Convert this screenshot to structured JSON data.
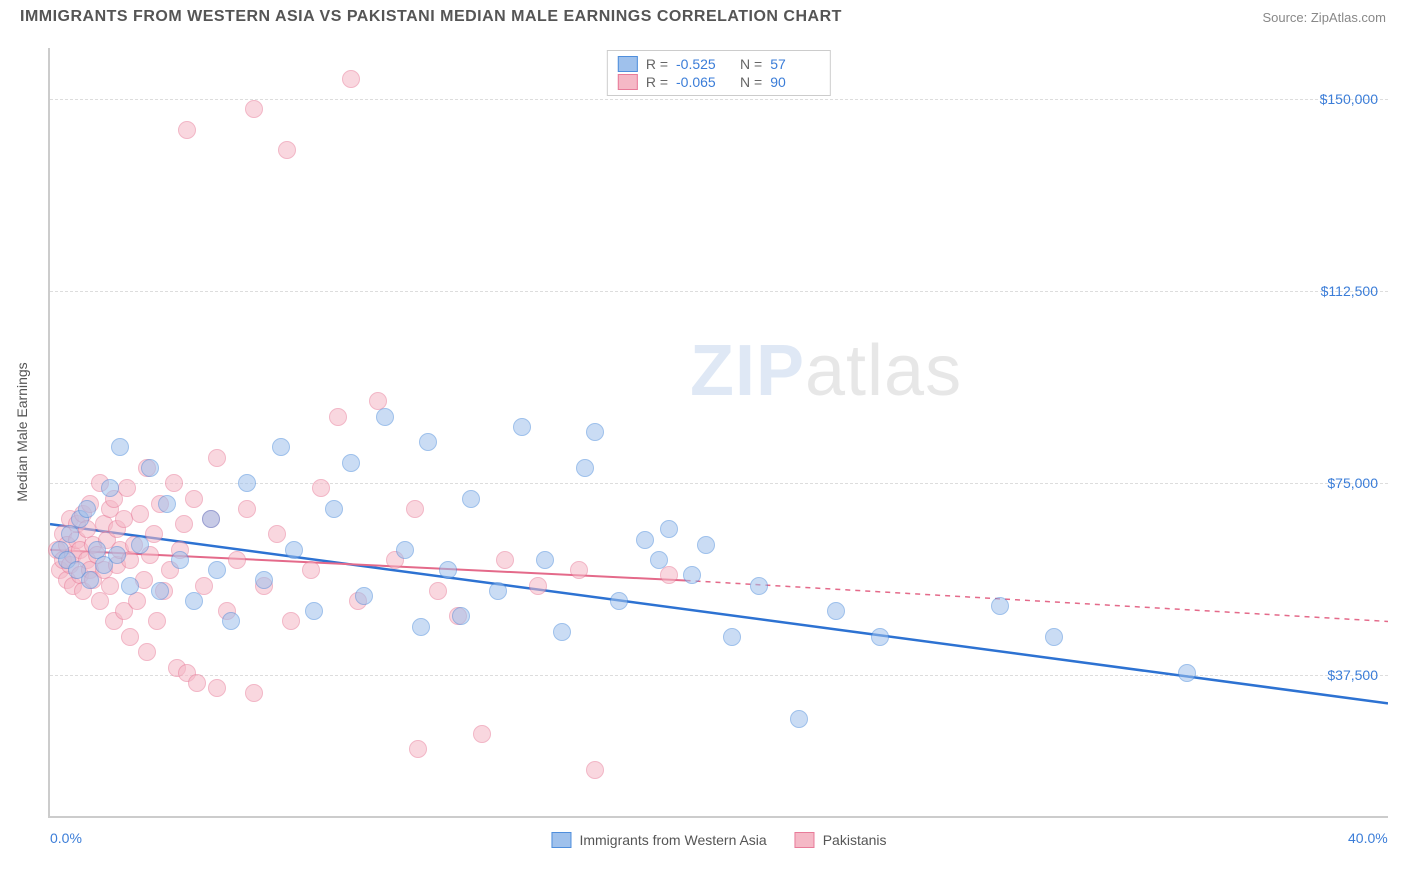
{
  "header": {
    "title": "IMMIGRANTS FROM WESTERN ASIA VS PAKISTANI MEDIAN MALE EARNINGS CORRELATION CHART",
    "source_prefix": "Source: ",
    "source_name": "ZipAtlas.com"
  },
  "watermark": {
    "part1": "ZIP",
    "part2": "atlas"
  },
  "chart": {
    "type": "scatter",
    "background_color": "#ffffff",
    "grid_color": "#dddddd",
    "axis_color": "#cccccc",
    "y_axis_label": "Median Male Earnings",
    "xlim": [
      0,
      40
    ],
    "ylim": [
      10000,
      160000
    ],
    "x_ticks": [
      {
        "value": 0,
        "label": "0.0%"
      },
      {
        "value": 40,
        "label": "40.0%"
      }
    ],
    "y_ticks": [
      {
        "value": 37500,
        "label": "$37,500"
      },
      {
        "value": 75000,
        "label": "$75,000"
      },
      {
        "value": 112500,
        "label": "$112,500"
      },
      {
        "value": 150000,
        "label": "$150,000"
      }
    ],
    "series": [
      {
        "id": "western_asia",
        "label": "Immigrants from Western Asia",
        "fill_color": "#9fc1ec",
        "stroke_color": "#4f8edc",
        "r_value": "-0.525",
        "n_value": "57",
        "trend": {
          "solid": {
            "x1": 0,
            "y1": 67000,
            "x2": 40,
            "y2": 32000,
            "color": "#2d72d2",
            "width": 2.5
          },
          "dashed": null
        },
        "points": [
          [
            0.3,
            62000
          ],
          [
            0.5,
            60000
          ],
          [
            0.6,
            65000
          ],
          [
            0.8,
            58000
          ],
          [
            0.9,
            68000
          ],
          [
            1.1,
            70000
          ],
          [
            1.2,
            56000
          ],
          [
            1.4,
            62000
          ],
          [
            1.6,
            59000
          ],
          [
            1.8,
            74000
          ],
          [
            2.0,
            61000
          ],
          [
            2.1,
            82000
          ],
          [
            2.4,
            55000
          ],
          [
            2.7,
            63000
          ],
          [
            3.0,
            78000
          ],
          [
            3.3,
            54000
          ],
          [
            3.5,
            71000
          ],
          [
            3.9,
            60000
          ],
          [
            4.3,
            52000
          ],
          [
            4.8,
            68000
          ],
          [
            5.0,
            58000
          ],
          [
            5.4,
            48000
          ],
          [
            5.9,
            75000
          ],
          [
            6.4,
            56000
          ],
          [
            6.9,
            82000
          ],
          [
            7.3,
            62000
          ],
          [
            7.9,
            50000
          ],
          [
            8.5,
            70000
          ],
          [
            9.0,
            79000
          ],
          [
            9.4,
            53000
          ],
          [
            10.0,
            88000
          ],
          [
            10.6,
            62000
          ],
          [
            11.1,
            47000
          ],
          [
            11.3,
            83000
          ],
          [
            11.9,
            58000
          ],
          [
            12.3,
            49000
          ],
          [
            12.6,
            72000
          ],
          [
            13.4,
            54000
          ],
          [
            14.1,
            86000
          ],
          [
            14.8,
            60000
          ],
          [
            15.3,
            46000
          ],
          [
            16.0,
            78000
          ],
          [
            16.3,
            85000
          ],
          [
            17.0,
            52000
          ],
          [
            17.8,
            64000
          ],
          [
            18.2,
            60000
          ],
          [
            18.5,
            66000
          ],
          [
            19.2,
            57000
          ],
          [
            19.6,
            63000
          ],
          [
            20.4,
            45000
          ],
          [
            21.2,
            55000
          ],
          [
            22.4,
            29000
          ],
          [
            23.5,
            50000
          ],
          [
            24.8,
            45000
          ],
          [
            28.4,
            51000
          ],
          [
            30.0,
            45000
          ],
          [
            34.0,
            38000
          ]
        ]
      },
      {
        "id": "pakistanis",
        "label": "Pakistanis",
        "fill_color": "#f5b8c6",
        "stroke_color": "#e87b99",
        "r_value": "-0.065",
        "n_value": "90",
        "trend": {
          "solid": {
            "x1": 0,
            "y1": 62000,
            "x2": 19,
            "y2": 56000,
            "color": "#e46a8a",
            "width": 2
          },
          "dashed": {
            "x1": 19,
            "y1": 56000,
            "x2": 40,
            "y2": 48000,
            "color": "#e46a8a",
            "width": 1.5
          }
        },
        "points": [
          [
            0.2,
            62000
          ],
          [
            0.3,
            58000
          ],
          [
            0.4,
            65000
          ],
          [
            0.4,
            60000
          ],
          [
            0.5,
            56000
          ],
          [
            0.5,
            63000
          ],
          [
            0.6,
            68000
          ],
          [
            0.6,
            59000
          ],
          [
            0.7,
            61000
          ],
          [
            0.7,
            55000
          ],
          [
            0.8,
            64000
          ],
          [
            0.8,
            67000
          ],
          [
            0.9,
            57000
          ],
          [
            0.9,
            62000
          ],
          [
            1.0,
            69000
          ],
          [
            1.0,
            54000
          ],
          [
            1.1,
            66000
          ],
          [
            1.1,
            60000
          ],
          [
            1.2,
            58000
          ],
          [
            1.2,
            71000
          ],
          [
            1.3,
            63000
          ],
          [
            1.3,
            56000
          ],
          [
            1.4,
            61000
          ],
          [
            1.5,
            75000
          ],
          [
            1.5,
            52000
          ],
          [
            1.6,
            67000
          ],
          [
            1.6,
            58000
          ],
          [
            1.7,
            64000
          ],
          [
            1.8,
            55000
          ],
          [
            1.8,
            70000
          ],
          [
            1.9,
            72000
          ],
          [
            1.9,
            48000
          ],
          [
            2.0,
            66000
          ],
          [
            2.0,
            59000
          ],
          [
            2.1,
            62000
          ],
          [
            2.2,
            50000
          ],
          [
            2.2,
            68000
          ],
          [
            2.3,
            74000
          ],
          [
            2.4,
            45000
          ],
          [
            2.4,
            60000
          ],
          [
            2.5,
            63000
          ],
          [
            2.6,
            52000
          ],
          [
            2.7,
            69000
          ],
          [
            2.8,
            56000
          ],
          [
            2.9,
            78000
          ],
          [
            2.9,
            42000
          ],
          [
            3.0,
            61000
          ],
          [
            3.1,
            65000
          ],
          [
            3.2,
            48000
          ],
          [
            3.3,
            71000
          ],
          [
            3.4,
            54000
          ],
          [
            3.6,
            58000
          ],
          [
            3.7,
            75000
          ],
          [
            3.8,
            39000
          ],
          [
            3.9,
            62000
          ],
          [
            4.0,
            67000
          ],
          [
            4.1,
            38000
          ],
          [
            4.1,
            144000
          ],
          [
            4.3,
            72000
          ],
          [
            4.4,
            36000
          ],
          [
            4.6,
            55000
          ],
          [
            4.8,
            68000
          ],
          [
            5.0,
            35000
          ],
          [
            5.0,
            80000
          ],
          [
            5.3,
            50000
          ],
          [
            5.6,
            60000
          ],
          [
            5.9,
            70000
          ],
          [
            6.1,
            34000
          ],
          [
            6.1,
            148000
          ],
          [
            6.4,
            55000
          ],
          [
            6.8,
            65000
          ],
          [
            7.1,
            140000
          ],
          [
            7.2,
            48000
          ],
          [
            7.8,
            58000
          ],
          [
            8.1,
            74000
          ],
          [
            8.6,
            88000
          ],
          [
            9.0,
            154000
          ],
          [
            9.2,
            52000
          ],
          [
            9.8,
            91000
          ],
          [
            10.3,
            60000
          ],
          [
            10.9,
            70000
          ],
          [
            11.0,
            23000
          ],
          [
            11.6,
            54000
          ],
          [
            12.2,
            49000
          ],
          [
            12.9,
            26000
          ],
          [
            13.6,
            60000
          ],
          [
            14.6,
            55000
          ],
          [
            15.8,
            58000
          ],
          [
            16.3,
            19000
          ],
          [
            18.5,
            57000
          ]
        ]
      }
    ],
    "legend_stats": {
      "r_label": "R =",
      "n_label": "N ="
    }
  }
}
